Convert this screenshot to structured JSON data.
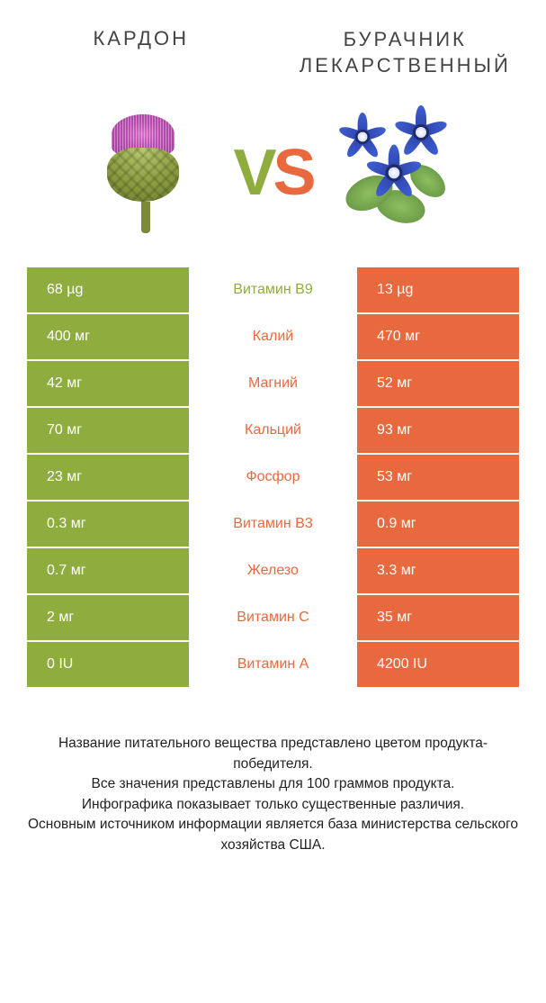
{
  "colors": {
    "green": "#8fad3e",
    "orange": "#e9693f",
    "text": "#333333",
    "background": "#ffffff"
  },
  "left_product": {
    "title": "КАРДОН"
  },
  "right_product": {
    "title": "БУРАЧНИК ЛЕКАРСТВЕННЫЙ"
  },
  "vs_label": {
    "v": "V",
    "s": "S"
  },
  "table": {
    "rows": [
      {
        "left": "68 µg",
        "nutrient": "Витамин B9",
        "right": "13 µg",
        "winner": "left"
      },
      {
        "left": "400 мг",
        "nutrient": "Калий",
        "right": "470 мг",
        "winner": "right"
      },
      {
        "left": "42 мг",
        "nutrient": "Магний",
        "right": "52 мг",
        "winner": "right"
      },
      {
        "left": "70 мг",
        "nutrient": "Кальций",
        "right": "93 мг",
        "winner": "right"
      },
      {
        "left": "23 мг",
        "nutrient": "Фосфор",
        "right": "53 мг",
        "winner": "right"
      },
      {
        "left": "0.3 мг",
        "nutrient": "Витамин B3",
        "right": "0.9 мг",
        "winner": "right"
      },
      {
        "left": "0.7 мг",
        "nutrient": "Железо",
        "right": "3.3 мг",
        "winner": "right"
      },
      {
        "left": "2 мг",
        "nutrient": "Витамин C",
        "right": "35 мг",
        "winner": "right"
      },
      {
        "left": "0 IU",
        "nutrient": "Витамин A",
        "right": "4200 IU",
        "winner": "right"
      }
    ]
  },
  "footer": {
    "line1": "Название питательного вещества представлено цветом продукта-победителя.",
    "line2": "Все значения представлены для 100 граммов продукта.",
    "line3": "Инфографика показывает только существенные различия.",
    "line4": "Основным источником информации является база министерства сельского хозяйства США."
  }
}
